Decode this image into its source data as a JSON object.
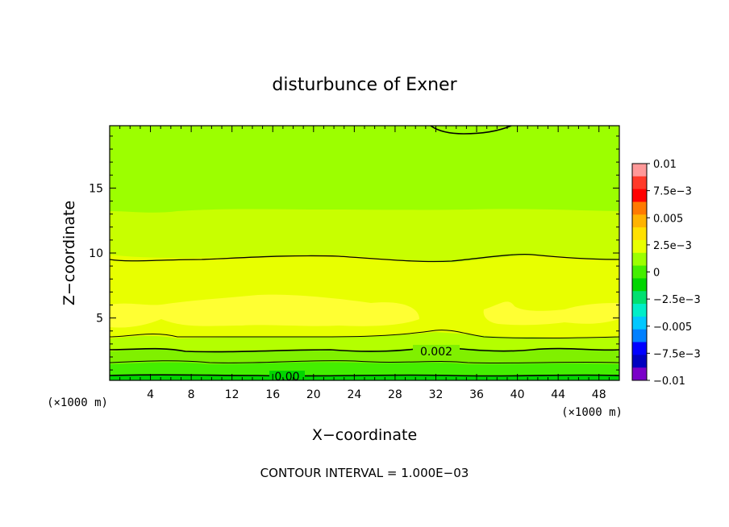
{
  "chart_data": {
    "type": "heatmap",
    "title": "disturbunce of Exner",
    "xlabel": "X−coordinate",
    "ylabel": "Z−coordinate",
    "x_unit": "(×1000 m)",
    "y_unit": "(×1000 m)",
    "xlim": [
      0,
      50
    ],
    "ylim": [
      0.2,
      19.8
    ],
    "x_ticks": [
      4,
      8,
      12,
      16,
      20,
      24,
      28,
      32,
      36,
      40,
      44,
      48
    ],
    "y_ticks": [
      5,
      10,
      15
    ],
    "colorbar": {
      "range": [
        -0.01,
        0.01
      ],
      "tick_values": [
        0.01,
        0.0075,
        0.005,
        0.0025,
        0,
        -0.0025,
        -0.005,
        -0.0075,
        -0.01
      ],
      "tick_labels": [
        "0.01",
        "7.5e−3",
        "0.005",
        "2.5e−3",
        "0",
        "−2.5e−3",
        "−0.005",
        "−7.5e−3",
        "−0.01"
      ],
      "colors": [
        "#ff9999",
        "#ff3a2a",
        "#ff0000",
        "#ff7a00",
        "#ffb300",
        "#ffe000",
        "#e8ff00",
        "#9cff00",
        "#44ee00",
        "#00d500",
        "#00e070",
        "#00eec8",
        "#00c8ff",
        "#0080ff",
        "#0000ff",
        "#0000c0",
        "#7a00c8"
      ]
    },
    "value_bands_by_height": [
      {
        "z": [
          0.2,
          0.6
        ],
        "value_range": [
          -0.0005,
          0.0
        ]
      },
      {
        "z": [
          0.6,
          1.4
        ],
        "value_range": [
          0.0,
          0.0005
        ]
      },
      {
        "z": [
          1.4,
          2.4
        ],
        "value_range": [
          0.0005,
          0.0015
        ]
      },
      {
        "z": [
          2.4,
          3.4
        ],
        "value_range": [
          0.0015,
          0.0025
        ]
      },
      {
        "z": [
          3.4,
          4.5
        ],
        "value_range": [
          0.0025,
          0.003
        ]
      },
      {
        "z": [
          4.5,
          6.5
        ],
        "value_range": [
          0.003,
          0.0035
        ]
      },
      {
        "z": [
          6.5,
          9.6
        ],
        "value_range": [
          0.0025,
          0.003
        ]
      },
      {
        "z": [
          9.6,
          13.3
        ],
        "value_range": [
          0.002,
          0.0025
        ]
      },
      {
        "z": [
          13.3,
          19.8
        ],
        "value_range": [
          0.0015,
          0.002
        ]
      }
    ],
    "contour_levels": [
      0.0,
      0.001,
      0.002,
      0.003
    ],
    "contour_labels": [
      "0.00",
      "0.002"
    ],
    "contour_interval_text": "CONTOUR INTERVAL = 1.000E−03"
  }
}
